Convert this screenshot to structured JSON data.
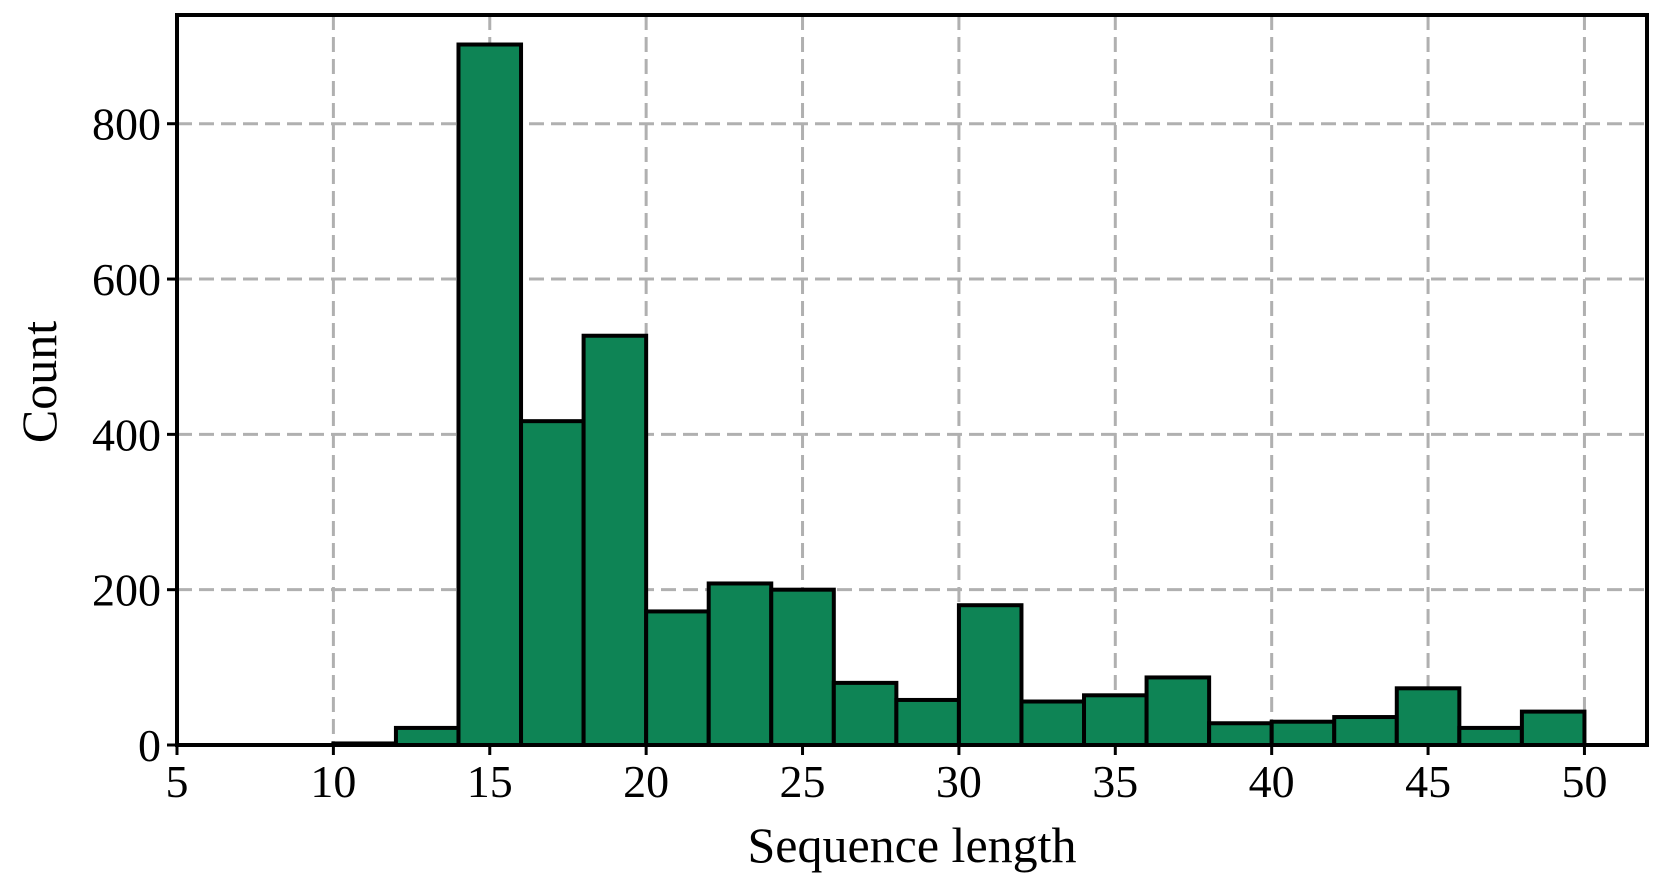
{
  "chart_data": {
    "type": "bar",
    "title": "",
    "xlabel": "Sequence length",
    "ylabel": "Count",
    "xlim": [
      5,
      52
    ],
    "ylim": [
      0,
      940
    ],
    "xticks": [
      5,
      10,
      15,
      20,
      25,
      30,
      35,
      40,
      45,
      50
    ],
    "yticks": [
      0,
      200,
      400,
      600,
      800
    ],
    "grid": true,
    "bar_color": "#0e8455",
    "edge_color": "#000000",
    "grid_color": "#b0b0b0",
    "bins": [
      {
        "x0": 10,
        "x1": 12,
        "count": 2
      },
      {
        "x0": 12,
        "x1": 14,
        "count": 22
      },
      {
        "x0": 14,
        "x1": 16,
        "count": 902
      },
      {
        "x0": 16,
        "x1": 18,
        "count": 417
      },
      {
        "x0": 18,
        "x1": 20,
        "count": 527
      },
      {
        "x0": 20,
        "x1": 22,
        "count": 172
      },
      {
        "x0": 22,
        "x1": 24,
        "count": 208
      },
      {
        "x0": 24,
        "x1": 26,
        "count": 200
      },
      {
        "x0": 26,
        "x1": 28,
        "count": 80
      },
      {
        "x0": 28,
        "x1": 30,
        "count": 58
      },
      {
        "x0": 30,
        "x1": 32,
        "count": 180
      },
      {
        "x0": 32,
        "x1": 34,
        "count": 56
      },
      {
        "x0": 34,
        "x1": 36,
        "count": 64
      },
      {
        "x0": 36,
        "x1": 38,
        "count": 87
      },
      {
        "x0": 38,
        "x1": 40,
        "count": 28
      },
      {
        "x0": 40,
        "x1": 42,
        "count": 30
      },
      {
        "x0": 42,
        "x1": 44,
        "count": 36
      },
      {
        "x0": 44,
        "x1": 46,
        "count": 73
      },
      {
        "x0": 46,
        "x1": 48,
        "count": 22
      },
      {
        "x0": 48,
        "x1": 50,
        "count": 43
      }
    ]
  }
}
